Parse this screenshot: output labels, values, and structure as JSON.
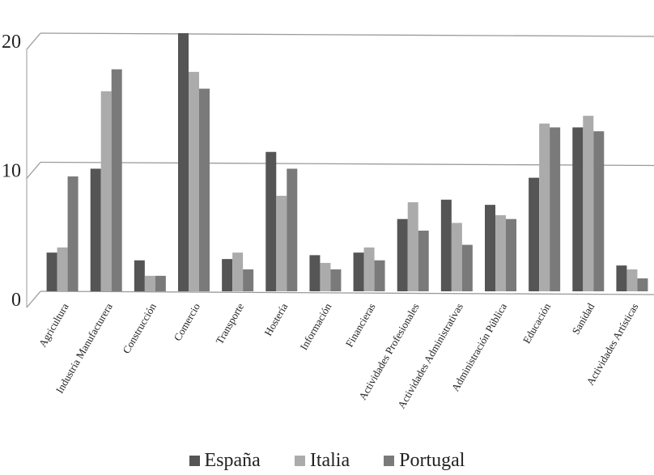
{
  "chart_data": {
    "type": "bar",
    "categories": [
      "Agricultura",
      "Industria Manufacturera",
      "Construcción",
      "Comercio",
      "Transporte",
      "Hostería",
      "Información",
      "Financieras",
      "Actividades Profesionales",
      "Actividades Administrativas",
      "Administración Pública",
      "Educación",
      "Sanidad",
      "Actividades Artísticas"
    ],
    "series": [
      {
        "name": "España",
        "color": "#555555",
        "values": [
          3.0,
          9.5,
          2.4,
          20.0,
          2.5,
          10.8,
          2.8,
          3.0,
          5.6,
          7.1,
          6.7,
          8.8,
          12.7,
          2.0
        ]
      },
      {
        "name": "Italia",
        "color": "#ababab",
        "values": [
          3.4,
          15.5,
          1.2,
          17.0,
          3.0,
          7.4,
          2.2,
          3.4,
          6.9,
          5.3,
          5.9,
          13.0,
          13.6,
          1.7
        ]
      },
      {
        "name": "Portugal",
        "color": "#7a7a7a",
        "values": [
          8.9,
          17.2,
          1.2,
          15.7,
          1.7,
          9.5,
          1.7,
          2.4,
          4.7,
          3.6,
          5.6,
          12.7,
          12.4,
          1.0
        ]
      }
    ],
    "yticks": [
      0,
      10,
      20
    ],
    "ylim": [
      0,
      20
    ],
    "legend_position": "bottom",
    "grid": true
  }
}
